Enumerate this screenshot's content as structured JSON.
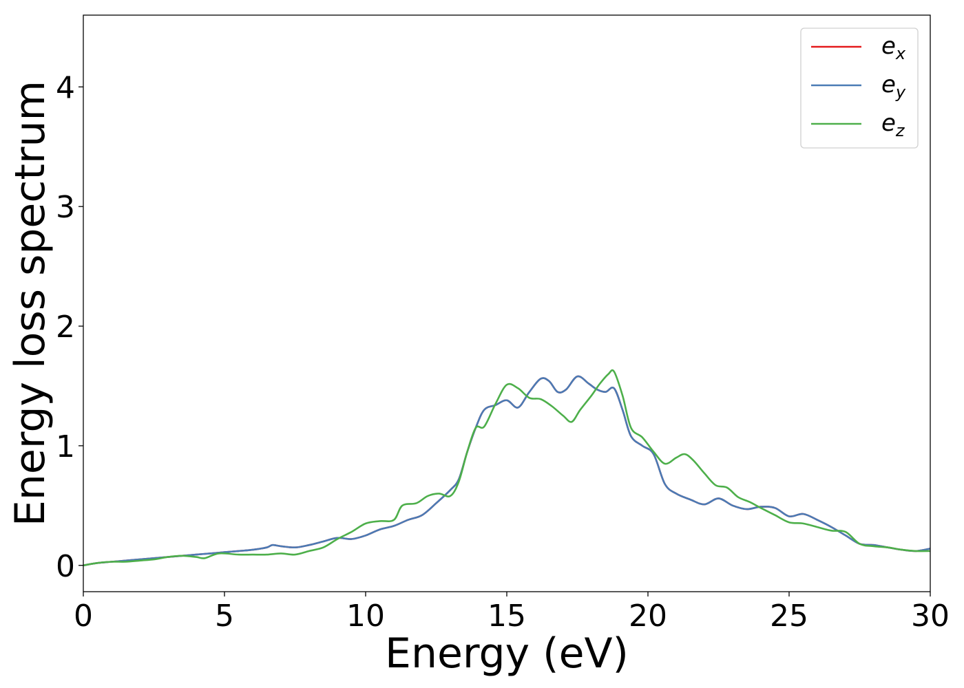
{
  "chart_data": {
    "type": "line",
    "xlabel": "Energy (eV)",
    "ylabel": "Energy loss spectrum",
    "xlim": [
      0,
      30
    ],
    "ylim": [
      -0.22,
      4.6
    ],
    "xticks": [
      0,
      5,
      10,
      15,
      20,
      25,
      30
    ],
    "yticks": [
      0,
      1,
      2,
      3,
      4
    ],
    "xtick_labels": [
      "0",
      "5",
      "10",
      "15",
      "20",
      "25",
      "30"
    ],
    "ytick_labels": [
      "0",
      "1",
      "2",
      "3",
      "4"
    ],
    "grid": false,
    "legend_position": "top-right",
    "series": [
      {
        "name": "e",
        "subscript": "x",
        "color": "#e41a1c",
        "x": [
          0,
          0.5,
          1,
          1.5,
          2,
          2.5,
          3,
          3.5,
          4,
          4.5,
          5,
          5.5,
          6,
          6.5,
          6.7,
          7,
          7.5,
          8,
          8.5,
          9,
          9.5,
          10,
          10.5,
          11,
          11.5,
          12,
          12.5,
          13,
          13.3,
          13.6,
          13.9,
          14.2,
          14.6,
          15,
          15.4,
          15.8,
          16.2,
          16.5,
          16.8,
          17.1,
          17.5,
          17.9,
          18.2,
          18.5,
          18.8,
          19.1,
          19.4,
          19.8,
          20.2,
          20.6,
          21,
          21.5,
          22,
          22.5,
          23,
          23.5,
          24,
          24.5,
          25,
          25.5,
          26,
          26.5,
          27,
          27.5,
          28,
          28.5,
          29,
          29.5,
          30
        ],
        "y": [
          0.0,
          0.02,
          0.03,
          0.04,
          0.05,
          0.06,
          0.07,
          0.08,
          0.09,
          0.1,
          0.11,
          0.12,
          0.13,
          0.15,
          0.17,
          0.16,
          0.15,
          0.17,
          0.2,
          0.23,
          0.22,
          0.25,
          0.3,
          0.33,
          0.38,
          0.42,
          0.52,
          0.63,
          0.72,
          0.95,
          1.15,
          1.3,
          1.34,
          1.38,
          1.32,
          1.45,
          1.56,
          1.54,
          1.45,
          1.47,
          1.58,
          1.52,
          1.47,
          1.45,
          1.48,
          1.3,
          1.08,
          1.0,
          0.93,
          0.68,
          0.6,
          0.55,
          0.51,
          0.56,
          0.5,
          0.47,
          0.49,
          0.48,
          0.41,
          0.43,
          0.38,
          0.32,
          0.25,
          0.18,
          0.17,
          0.15,
          0.13,
          0.12,
          0.14
        ]
      },
      {
        "name": "e",
        "subscript": "y",
        "color": "#4a7bb5",
        "x": [
          0,
          0.5,
          1,
          1.5,
          2,
          2.5,
          3,
          3.5,
          4,
          4.5,
          5,
          5.5,
          6,
          6.5,
          6.7,
          7,
          7.5,
          8,
          8.5,
          9,
          9.5,
          10,
          10.5,
          11,
          11.5,
          12,
          12.5,
          13,
          13.3,
          13.6,
          13.9,
          14.2,
          14.6,
          15,
          15.4,
          15.8,
          16.2,
          16.5,
          16.8,
          17.1,
          17.5,
          17.9,
          18.2,
          18.5,
          18.8,
          19.1,
          19.4,
          19.8,
          20.2,
          20.6,
          21,
          21.5,
          22,
          22.5,
          23,
          23.5,
          24,
          24.5,
          25,
          25.5,
          26,
          26.5,
          27,
          27.5,
          28,
          28.5,
          29,
          29.5,
          30
        ],
        "y": [
          0.0,
          0.02,
          0.03,
          0.04,
          0.05,
          0.06,
          0.07,
          0.08,
          0.09,
          0.1,
          0.11,
          0.12,
          0.13,
          0.15,
          0.17,
          0.16,
          0.15,
          0.17,
          0.2,
          0.23,
          0.22,
          0.25,
          0.3,
          0.33,
          0.38,
          0.42,
          0.52,
          0.63,
          0.72,
          0.95,
          1.15,
          1.3,
          1.34,
          1.38,
          1.32,
          1.45,
          1.56,
          1.54,
          1.45,
          1.47,
          1.58,
          1.52,
          1.47,
          1.45,
          1.48,
          1.3,
          1.08,
          1.0,
          0.93,
          0.68,
          0.6,
          0.55,
          0.51,
          0.56,
          0.5,
          0.47,
          0.49,
          0.48,
          0.41,
          0.43,
          0.38,
          0.32,
          0.25,
          0.18,
          0.17,
          0.15,
          0.13,
          0.12,
          0.14
        ]
      },
      {
        "name": "e",
        "subscript": "z",
        "color": "#4daf4a",
        "x": [
          0,
          0.5,
          1,
          1.5,
          2,
          2.5,
          3,
          3.5,
          4,
          4.3,
          4.8,
          5.5,
          6,
          6.5,
          7,
          7.5,
          8,
          8.5,
          9,
          9.5,
          10,
          10.5,
          11,
          11.3,
          11.8,
          12.2,
          12.6,
          13,
          13.3,
          13.6,
          13.9,
          14.2,
          14.6,
          15,
          15.4,
          15.8,
          16.2,
          16.6,
          17,
          17.3,
          17.6,
          18,
          18.3,
          18.6,
          18.8,
          19.1,
          19.4,
          19.8,
          20.2,
          20.6,
          21,
          21.3,
          21.6,
          22,
          22.4,
          22.8,
          23.2,
          23.6,
          24,
          24.5,
          25,
          25.5,
          26,
          26.5,
          27,
          27.5,
          28,
          28.5,
          29,
          29.5,
          30
        ],
        "y": [
          0.0,
          0.02,
          0.03,
          0.03,
          0.04,
          0.05,
          0.07,
          0.08,
          0.07,
          0.06,
          0.1,
          0.09,
          0.09,
          0.09,
          0.1,
          0.09,
          0.12,
          0.15,
          0.22,
          0.28,
          0.35,
          0.37,
          0.38,
          0.5,
          0.52,
          0.58,
          0.6,
          0.58,
          0.7,
          0.95,
          1.15,
          1.16,
          1.35,
          1.51,
          1.48,
          1.4,
          1.39,
          1.33,
          1.25,
          1.2,
          1.3,
          1.42,
          1.52,
          1.6,
          1.62,
          1.42,
          1.15,
          1.07,
          0.95,
          0.85,
          0.9,
          0.93,
          0.88,
          0.77,
          0.67,
          0.65,
          0.57,
          0.53,
          0.48,
          0.42,
          0.36,
          0.35,
          0.32,
          0.29,
          0.28,
          0.18,
          0.16,
          0.15,
          0.13,
          0.12,
          0.12
        ]
      }
    ]
  }
}
